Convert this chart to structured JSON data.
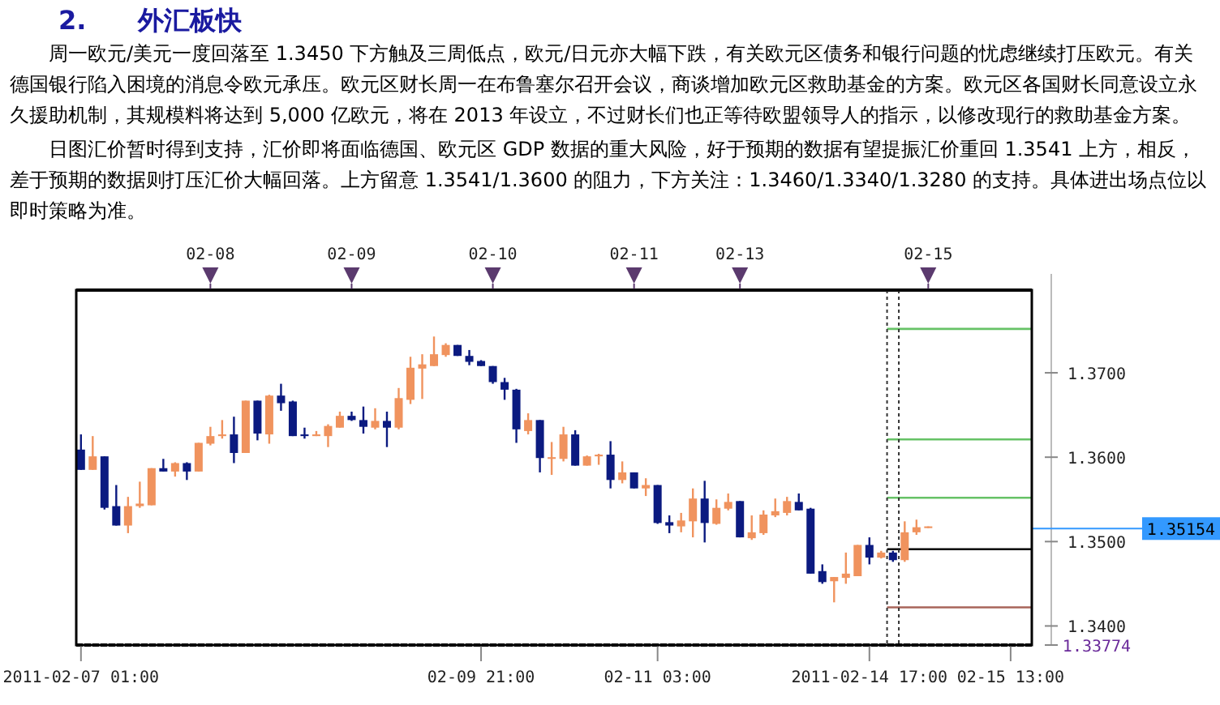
{
  "chart_data": {
    "type": "candlestick",
    "title": "2.　　外汇板快",
    "annotations": [
      "周一欧元/美元一度回落至 1.3450 下方触及三周低点，欧元/日元亦大幅下跌，有关欧元区债务和银行问题的忧虑继续打压欧元。有关德国银行陷入困境的消息令欧元承压。欧元区财长周一在布鲁塞尔召开会议，商谈增加欧元区救助基金的方案。欧元区各国财长同意设立永久援助机制，其规模料将达到 5,000 亿欧元，将在 2013 年设立，不过财长们也正等待欧盟领导人的指示，以修改现行的救助基金方案。",
      "日图汇价暂时得到支持，汇价即将面临德国、欧元区 GDP 数据的重大风险，好于预期的数据有望提振汇价重回 1.3541 上方，相反，差于预期的数据则打压汇价大幅回落。上方留意 1.3541/1.3600 的阻力，下方关注：1.3460/1.3340/1.3280 的支持。具体进出场点位以即时策略为准。"
    ],
    "categories": [
      "2011-02-07 01:00",
      null,
      null,
      null,
      null,
      null,
      null,
      null,
      null,
      null,
      null,
      "02-08",
      null,
      null,
      null,
      null,
      null,
      null,
      null,
      null,
      null,
      null,
      null,
      "02-09",
      null,
      null,
      null,
      null,
      null,
      null,
      null,
      null,
      null,
      null,
      "02-09 21:00",
      "02-10",
      null,
      null,
      null,
      null,
      null,
      null,
      null,
      null,
      null,
      null,
      null,
      "02-11",
      null,
      "02-11 03:00",
      null,
      null,
      null,
      null,
      null,
      null,
      "02-13",
      null,
      null,
      null,
      null,
      null,
      null,
      null,
      null,
      null,
      null,
      "2011-02-14 17:00",
      null,
      null,
      null,
      null,
      "02-15",
      null,
      null,
      null,
      null,
      null,
      null,
      "02-15 13:00",
      null
    ],
    "ohlc": [
      [
        1.3609,
        1.3627,
        1.3585,
        1.3585
      ],
      [
        1.3585,
        1.3625,
        1.3585,
        1.3601
      ],
      [
        1.3601,
        1.3601,
        1.3538,
        1.354
      ],
      [
        1.3542,
        1.3567,
        1.3519,
        1.3519
      ],
      [
        1.3519,
        1.3553,
        1.351,
        1.3542
      ],
      [
        1.3542,
        1.3571,
        1.354,
        1.3545
      ],
      [
        1.3543,
        1.3587,
        1.3543,
        1.3587
      ],
      [
        1.3587,
        1.3598,
        1.3583,
        1.3583
      ],
      [
        1.3583,
        1.3594,
        1.3577,
        1.3593
      ],
      [
        1.3593,
        1.3594,
        1.3573,
        1.3583
      ],
      [
        1.3583,
        1.3617,
        1.3583,
        1.3617
      ],
      [
        1.3616,
        1.3636,
        1.3614,
        1.3625
      ],
      [
        1.3625,
        1.3644,
        1.3622,
        1.3627
      ],
      [
        1.3627,
        1.3648,
        1.3593,
        1.3605
      ],
      [
        1.3605,
        1.3667,
        1.3605,
        1.3667
      ],
      [
        1.3667,
        1.3667,
        1.362,
        1.3628
      ],
      [
        1.3627,
        1.3674,
        1.3616,
        1.3673
      ],
      [
        1.3673,
        1.3687,
        1.3655,
        1.3664
      ],
      [
        1.3666,
        1.3667,
        1.3625,
        1.3625
      ],
      [
        1.3627,
        1.3635,
        1.3622,
        1.3625
      ],
      [
        1.3625,
        1.3631,
        1.3625,
        1.3627
      ],
      [
        1.3625,
        1.3639,
        1.3612,
        1.3637
      ],
      [
        1.3635,
        1.3654,
        1.3635,
        1.3649
      ],
      [
        1.3649,
        1.3654,
        1.3643,
        1.3644
      ],
      [
        1.3644,
        1.366,
        1.3628,
        1.3636
      ],
      [
        1.3635,
        1.3658,
        1.3633,
        1.3643
      ],
      [
        1.3643,
        1.3654,
        1.3612,
        1.3635
      ],
      [
        1.3635,
        1.3682,
        1.3633,
        1.367
      ],
      [
        1.3668,
        1.3719,
        1.3663,
        1.3706
      ],
      [
        1.3705,
        1.3722,
        1.3669,
        1.371
      ],
      [
        1.3708,
        1.3743,
        1.3708,
        1.3722
      ],
      [
        1.3721,
        1.3735,
        1.3719,
        1.3733
      ],
      [
        1.3733,
        1.3733,
        1.372,
        1.372
      ],
      [
        1.372,
        1.3727,
        1.3709,
        1.3713
      ],
      [
        1.3714,
        1.3715,
        1.3708,
        1.3708
      ],
      [
        1.3708,
        1.3708,
        1.3687,
        1.3689
      ],
      [
        1.3689,
        1.3694,
        1.3668,
        1.368
      ],
      [
        1.368,
        1.3681,
        1.3617,
        1.3633
      ],
      [
        1.3631,
        1.3652,
        1.3627,
        1.3644
      ],
      [
        1.3644,
        1.3644,
        1.3582,
        1.3599
      ],
      [
        1.3598,
        1.3618,
        1.3579,
        1.36
      ],
      [
        1.3598,
        1.3636,
        1.3595,
        1.3627
      ],
      [
        1.3627,
        1.3632,
        1.359,
        1.359
      ],
      [
        1.359,
        1.3602,
        1.359,
        1.3601
      ],
      [
        1.3601,
        1.3604,
        1.3591,
        1.3603
      ],
      [
        1.3603,
        1.3619,
        1.3563,
        1.3573
      ],
      [
        1.3573,
        1.3595,
        1.3569,
        1.3582
      ],
      [
        1.3582,
        1.3582,
        1.3563,
        1.3563
      ],
      [
        1.3563,
        1.3575,
        1.3554,
        1.3567
      ],
      [
        1.3567,
        1.3567,
        1.3521,
        1.3522
      ],
      [
        1.3523,
        1.3531,
        1.351,
        1.3519
      ],
      [
        1.3518,
        1.3534,
        1.3511,
        1.3525
      ],
      [
        1.3524,
        1.3563,
        1.3505,
        1.3551
      ],
      [
        1.3551,
        1.3572,
        1.3499,
        1.3522
      ],
      [
        1.3521,
        1.355,
        1.352,
        1.354
      ],
      [
        1.3539,
        1.3557,
        1.3537,
        1.3547
      ],
      [
        1.3548,
        1.3548,
        1.3505,
        1.3505
      ],
      [
        1.3504,
        1.3531,
        1.3502,
        1.3511
      ],
      [
        1.351,
        1.3537,
        1.3508,
        1.3532
      ],
      [
        1.3531,
        1.3551,
        1.3529,
        1.3536
      ],
      [
        1.3534,
        1.3553,
        1.3531,
        1.3548
      ],
      [
        1.3547,
        1.3557,
        1.3537,
        1.3537
      ],
      [
        1.3539,
        1.354,
        1.3462,
        1.3462
      ],
      [
        1.3465,
        1.3473,
        1.345,
        1.3452
      ],
      [
        1.3453,
        1.3458,
        1.3428,
        1.3458
      ],
      [
        1.3457,
        1.3487,
        1.345,
        1.3462
      ],
      [
        1.3459,
        1.3496,
        1.3459,
        1.3496
      ],
      [
        1.3496,
        1.3505,
        1.3473,
        1.3481
      ],
      [
        1.3481,
        1.3489,
        1.348,
        1.3487
      ],
      [
        1.3487,
        1.3489,
        1.3476,
        1.3478
      ],
      [
        1.3478,
        1.3524,
        1.3476,
        1.3511
      ],
      [
        1.3511,
        1.3526,
        1.3508,
        1.3517
      ],
      [
        1.3516,
        1.3518,
        1.3516,
        1.3518
      ],
      null,
      null,
      null,
      null,
      null,
      null,
      null,
      null
    ],
    "colors": [
      "#0b1a80",
      "#f0935e",
      "#0b1a80",
      "#0b1a80",
      "#f0935e",
      "#f0935e",
      "#f0935e",
      "#0b1a80",
      "#f0935e",
      "#0b1a80",
      "#f0935e",
      "#f0935e",
      "#f0935e",
      "#0b1a80",
      "#f0935e",
      "#0b1a80",
      "#f0935e",
      "#0b1a80",
      "#0b1a80",
      "#0b1a80",
      "#f0935e",
      "#f0935e",
      "#f0935e",
      "#0b1a80",
      "#0b1a80",
      "#f0935e",
      "#0b1a80",
      "#f0935e",
      "#f0935e",
      "#f0935e",
      "#f0935e",
      "#f0935e",
      "#0b1a80",
      "#0b1a80",
      "#0b1a80",
      "#0b1a80",
      "#0b1a80",
      "#0b1a80",
      "#f0935e",
      "#0b1a80",
      "#f0935e",
      "#f0935e",
      "#0b1a80",
      "#f0935e",
      "#f0935e",
      "#0b1a80",
      "#f0935e",
      "#0b1a80",
      "#f0935e",
      "#0b1a80",
      "#0b1a80",
      "#f0935e",
      "#f0935e",
      "#0b1a80",
      "#f0935e",
      "#f0935e",
      "#0b1a80",
      "#f0935e",
      "#f0935e",
      "#f0935e",
      "#f0935e",
      "#0b1a80",
      "#0b1a80",
      "#0b1a80",
      "#f0935e",
      "#f0935e",
      "#f0935e",
      "#0b1a80",
      "#f0935e",
      "#0b1a80",
      "#f0935e",
      "#f0935e",
      "#f0935e",
      null,
      null,
      null,
      null,
      null,
      null,
      null,
      null
    ],
    "ylim": [
      1.33774,
      1.3798
    ],
    "yticks": [
      {
        "value": 1.33774,
        "label": "1.33774"
      },
      {
        "value": 1.34,
        "label": "1.3400"
      },
      {
        "value": 1.35,
        "label": "1.3500"
      },
      {
        "value": 1.36,
        "label": "1.3600"
      },
      {
        "value": 1.37,
        "label": "1.3700"
      }
    ],
    "ref_lines": [
      {
        "axis": "y",
        "value": 1.3752,
        "color": "#66c266"
      },
      {
        "axis": "y",
        "value": 1.3621,
        "color": "#66c266"
      },
      {
        "axis": "y",
        "value": 1.3552,
        "color": "#66c266"
      },
      {
        "axis": "y",
        "value": 1.3491,
        "color": "#000000"
      },
      {
        "axis": "y",
        "value": 1.3422,
        "color": "#a8645a"
      },
      {
        "axis": "y",
        "value": 1.35154,
        "label": "1.35154",
        "color": "#3399ff"
      }
    ]
  }
}
